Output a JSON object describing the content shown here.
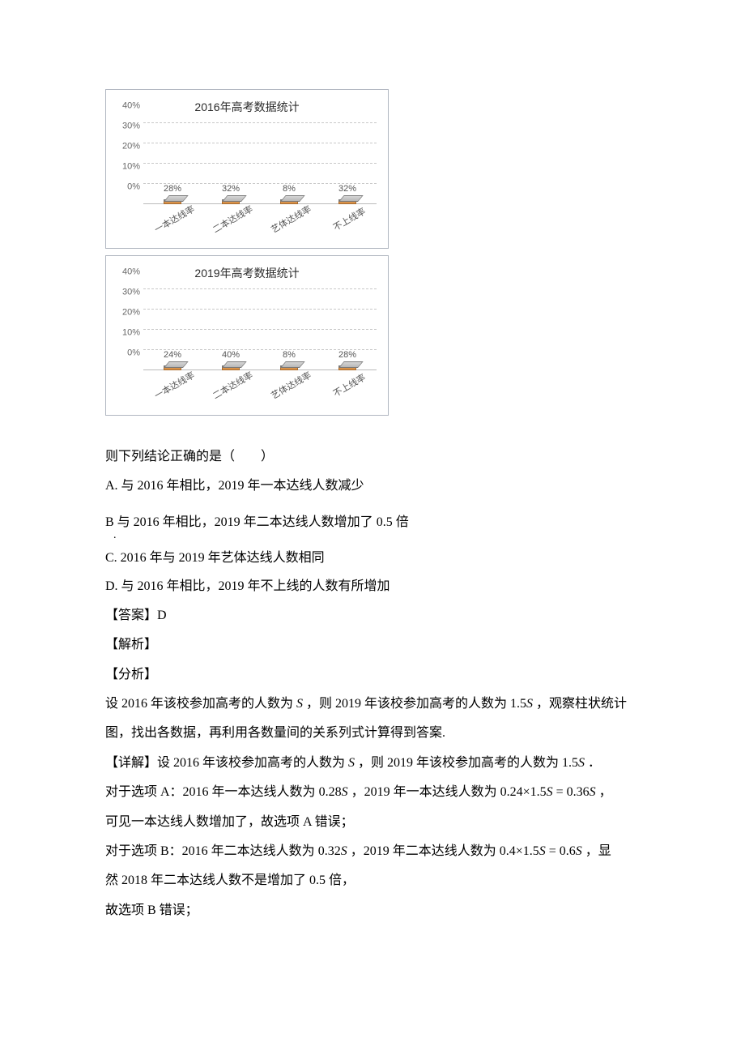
{
  "charts": {
    "c2016": {
      "type": "bar-3d",
      "title": "2016年高考数据统计",
      "ylim": [
        0,
        40
      ],
      "ytick_step": 10,
      "y_suffix": "%",
      "categories": [
        "一本达线率",
        "二本达线率",
        "艺体达线率",
        "不上线率"
      ],
      "values": [
        28,
        32,
        8,
        32
      ],
      "value_suffix": "%",
      "bar_color": "#a8a8a8",
      "base_color": "#d8924a",
      "grid_color": "#c8c8c8",
      "background_color": "#ffffff",
      "title_fontsize": 14,
      "label_fontsize": 11
    },
    "c2019": {
      "type": "bar-3d",
      "title": "2019年高考数据统计",
      "ylim": [
        0,
        40
      ],
      "ytick_step": 10,
      "y_suffix": "%",
      "categories": [
        "一本达线率",
        "二本达线率",
        "艺体达线率",
        "不上线率"
      ],
      "values": [
        24,
        40,
        8,
        28
      ],
      "value_suffix": "%",
      "bar_color": "#a8a8a8",
      "base_color": "#d8924a",
      "grid_color": "#c8c8c8",
      "background_color": "#ffffff",
      "title_fontsize": 14,
      "label_fontsize": 11
    }
  },
  "question": {
    "stem": "则下列结论正确的是（　　）",
    "A_pre": "A. 与 2016 年相比，2019 年一本达线人数减少",
    "B_pre": "B  与 2016 年相比，2019 年二本达线人数增加了",
    "B_dot": ".",
    "B_num": "0.5",
    "B_post": "倍",
    "C": "C. 2016 年与 2019 年艺体达线人数相同",
    "D": "D. 与 2016 年相比，2019 年不上线的人数有所增加"
  },
  "answer": {
    "label": "【答案】",
    "value": "D"
  },
  "jiexi_label": "【解析】",
  "fenxi_label": "【分析】",
  "fenxi": {
    "p1a": "设 2016 年该校参加高考的人数为",
    "S": "S",
    "p1b": "，则 2019 年该校参加高考的人数为",
    "v15S": "1.5S",
    "p1c": "，观察柱状统计",
    "p2": "图，找出各数据，再利用各数量间的关系列式计算得到答案."
  },
  "xiangjie": {
    "label": "【详解】",
    "p1a": "设 2016 年该校参加高考的人数为",
    "p1b": "，则 2019 年该校参加高考的人数为",
    "p1c": "．",
    "A1": "对于选项 A：2016 年一本达线人数为",
    "v028S": "0.28S",
    "A2": "，2019 年一本达线人数为",
    "v024x15S": "0.24×1.5S = 0.36S",
    "A3": "，",
    "A4": "可见一本达线人数增加了，故选项 A 错误；",
    "B1": "对于选项 B：2016 年二本达线人数为",
    "v032S": "0.32S",
    "B2": "，2019 年二本达线人数为",
    "v04x15S": "0.4×1.5S = 0.6S",
    "B3": "，显",
    "B4": "然 2018 年二本达线人数不是增加了 0.5 倍，",
    "B5": "故选项 B 错误；"
  }
}
